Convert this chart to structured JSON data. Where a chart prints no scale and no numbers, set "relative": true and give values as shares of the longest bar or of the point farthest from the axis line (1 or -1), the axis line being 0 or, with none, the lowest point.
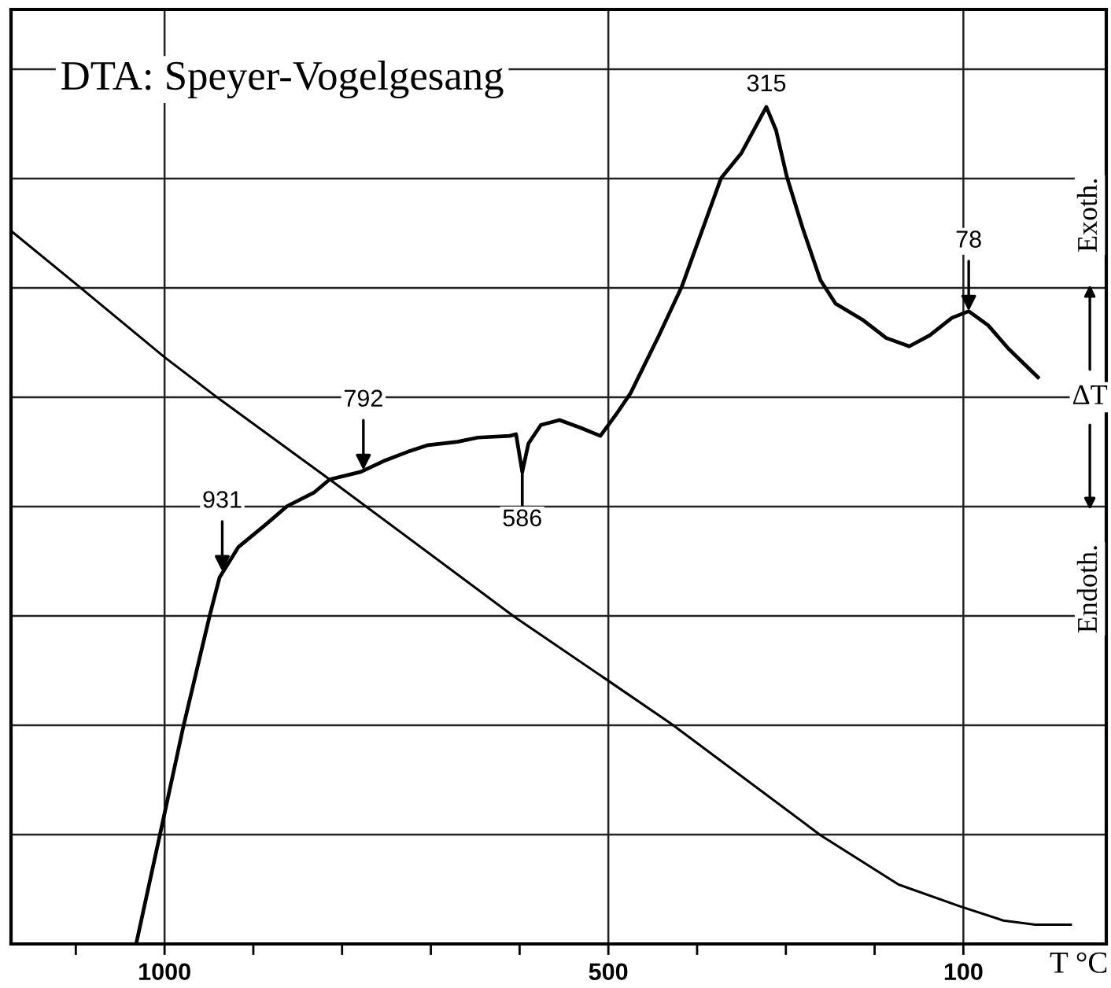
{
  "chart_data": {
    "type": "line",
    "title": "DTA: Speyer-Vogelgesang",
    "xlabel": "T °C",
    "relative": true,
    "grid": true,
    "xlim": [
      1173,
      -61
    ],
    "xticks": [
      {
        "value": 1100,
        "label": null
      },
      1000,
      {
        "value": 900,
        "label": null
      },
      {
        "value": 800,
        "label": null
      },
      {
        "value": 700,
        "label": null
      },
      {
        "value": 600,
        "label": null
      },
      500,
      {
        "value": 400,
        "label": null
      },
      {
        "value": 300,
        "label": null
      },
      {
        "value": 200,
        "label": null
      },
      100
    ],
    "series": [
      {
        "color": "#000000",
        "x": [
          1032,
          1000,
          979,
          949,
          938,
          917,
          885,
          862,
          832,
          814,
          779,
          753,
          726,
          703,
          670,
          647,
          611,
          604,
          597,
          590,
          576,
          555,
          532,
          509,
          491,
          475,
          443,
          417,
          373,
          350,
          322,
          311,
          299,
          281,
          261,
          244,
          214,
          187,
          161,
          138,
          113,
          94,
          72,
          49,
          16
        ],
        "values": [
          0,
          0.156,
          0.259,
          0.393,
          0.438,
          0.474,
          0.502,
          0.523,
          0.539,
          0.555,
          0.564,
          0.577,
          0.588,
          0.596,
          0.6,
          0.605,
          0.607,
          0.609,
          0.564,
          0.598,
          0.62,
          0.626,
          0.617,
          0.607,
          0.633,
          0.658,
          0.727,
          0.786,
          0.915,
          0.945,
          1,
          0.972,
          0.917,
          0.855,
          0.793,
          0.765,
          0.746,
          0.724,
          0.714,
          0.727,
          0.748,
          0.756,
          0.739,
          0.711,
          0.677
        ]
      },
      {
        "color": "#000000",
        "x": [
          1173,
          1097,
          1000,
          942,
          814,
          606,
          505,
          429,
          261,
          173,
          104,
          55,
          19,
          -21
        ],
        "values": [
          0.852,
          0.786,
          0.701,
          0.654,
          0.555,
          0.391,
          0.318,
          0.263,
          0.13,
          0.071,
          0.045,
          0.028,
          0.023,
          0.023
        ]
      }
    ],
    "annotations": [
      {
        "text": "931",
        "x": 935,
        "y": 0.445
      },
      {
        "text": "792",
        "x": 776,
        "y": 0.566
      },
      {
        "text": "586",
        "x": 597,
        "y": 0.564
      },
      {
        "text": "315",
        "x": 322,
        "y": 1
      },
      {
        "text": "78",
        "x": 94,
        "y": 0.756
      },
      "Exoth.",
      "ΔT",
      "Endoth."
    ]
  }
}
